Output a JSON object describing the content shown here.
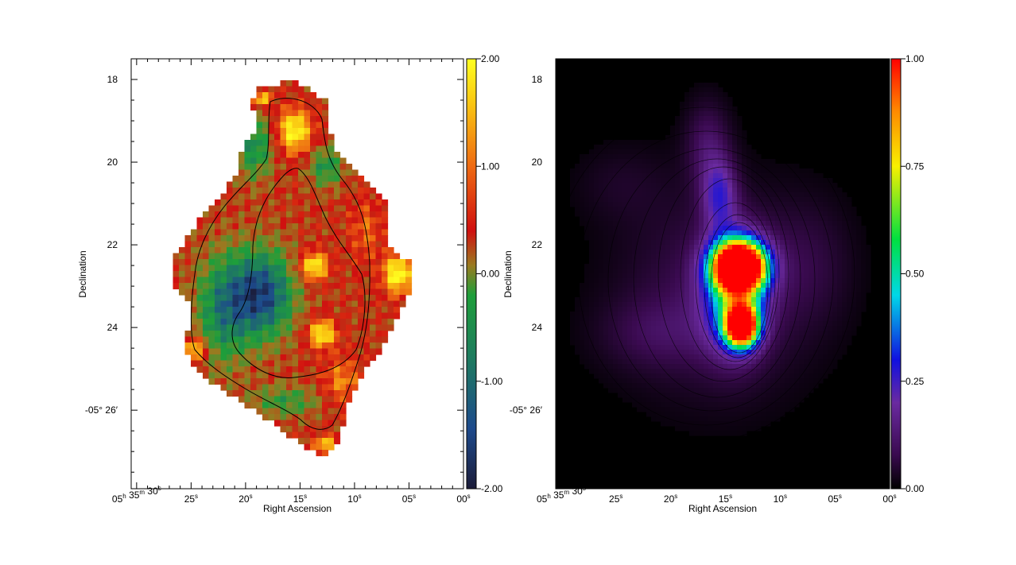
{
  "chart_data": [
    {
      "type": "heatmap",
      "xlabel": "Right Ascension",
      "ylabel": "Declination",
      "x_ticks": [
        {
          "value": 30,
          "main": "05",
          "sup": "h",
          "main2": " 35",
          "sup2": "m",
          "main3": " 30",
          "sup3": "s"
        },
        {
          "value": 25,
          "main": "25",
          "sup": "s"
        },
        {
          "value": 20,
          "main": "20",
          "sup": "s"
        },
        {
          "value": 15,
          "main": "15",
          "sup": "s"
        },
        {
          "value": 10,
          "main": "10",
          "sup": "s"
        },
        {
          "value": 5,
          "main": "05",
          "sup": "s"
        },
        {
          "value": 0,
          "main": "00",
          "sup": "s"
        }
      ],
      "y_ticks": [
        {
          "value": 18,
          "label": "18"
        },
        {
          "value": 20,
          "label": "20"
        },
        {
          "value": 22,
          "label": "22"
        },
        {
          "value": 24,
          "label": "24"
        },
        {
          "value": 26,
          "label": "-05° 26′"
        }
      ],
      "xlim": [
        30.5,
        0
      ],
      "ylim": [
        17.5,
        27.9
      ],
      "colorbar": {
        "ticks": [
          "2.00",
          "1.00",
          "0.00",
          "-1.00",
          "-2.00"
        ],
        "range": [
          -2,
          2
        ],
        "colormap": [
          "#1b1b38",
          "#1d4a8c",
          "#1e7a60",
          "#1e9e3a",
          "#9a7a20",
          "#d01010",
          "#ee6a12",
          "#fac812",
          "#ffff20"
        ]
      },
      "contours": [
        {
          "level": "outer"
        },
        {
          "level": "inner"
        }
      ]
    },
    {
      "type": "heatmap",
      "xlabel": "Right Ascension",
      "ylabel": "Declination",
      "x_ticks": [
        {
          "value": 30,
          "main": "05",
          "sup": "h",
          "main2": " 35",
          "sup2": "m",
          "main3": " 30",
          "sup3": "s"
        },
        {
          "value": 25,
          "main": "25",
          "sup": "s"
        },
        {
          "value": 20,
          "main": "20",
          "sup": "s"
        },
        {
          "value": 15,
          "main": "15",
          "sup": "s"
        },
        {
          "value": 10,
          "main": "10",
          "sup": "s"
        },
        {
          "value": 5,
          "main": "05",
          "sup": "s"
        },
        {
          "value": 0,
          "main": "00",
          "sup": "s"
        }
      ],
      "y_ticks": [
        {
          "value": 18,
          "label": "18"
        },
        {
          "value": 20,
          "label": "20"
        },
        {
          "value": 22,
          "label": "22"
        },
        {
          "value": 24,
          "label": "24"
        },
        {
          "value": 26,
          "label": "-05° 26′"
        }
      ],
      "xlim": [
        30.5,
        0
      ],
      "ylim": [
        17.5,
        27.9
      ],
      "colorbar": {
        "ticks": [
          "1.00",
          "0.75",
          "0.50",
          "0.25",
          "0.00"
        ],
        "range": [
          0,
          1
        ],
        "colormap": [
          "#000000",
          "#3a0a50",
          "#6a2aa0",
          "#1010e0",
          "#00d8e8",
          "#00e040",
          "#f8f000",
          "#ff8800",
          "#ff0000"
        ]
      }
    }
  ]
}
